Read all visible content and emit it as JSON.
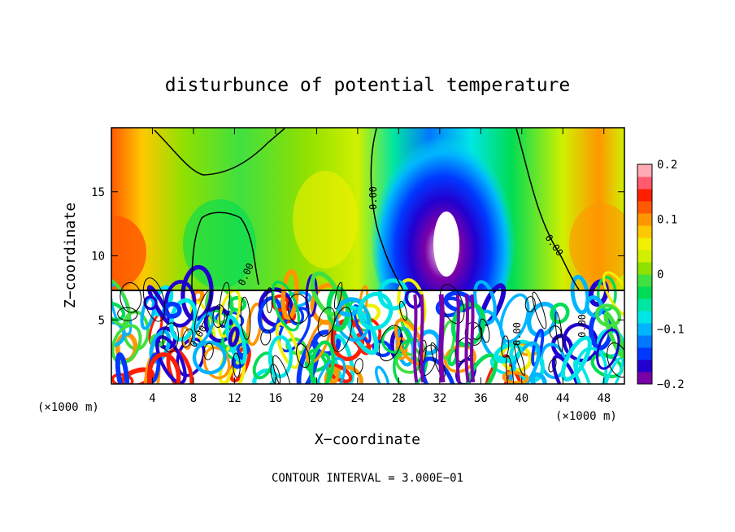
{
  "chart_data": {
    "type": "heatmap",
    "title": "disturbunce of potential temperature",
    "xlabel": "X−coordinate",
    "ylabel": "Z−coordinate",
    "x_unit_left": "(×1000 m)",
    "x_unit_right": "(×1000 m)",
    "footer": "CONTOUR INTERVAL = 3.000E−01",
    "xlim": [
      0,
      50
    ],
    "ylim": [
      0,
      20
    ],
    "x_ticks": [
      4,
      8,
      12,
      16,
      20,
      24,
      28,
      32,
      36,
      40,
      44,
      48
    ],
    "x_tick_labels": [
      "4",
      "8",
      "12",
      "16",
      "20",
      "24",
      "28",
      "32",
      "36",
      "40",
      "44",
      "48"
    ],
    "y_ticks": [
      5,
      10,
      15
    ],
    "y_tick_labels": [
      "5",
      "10",
      "15"
    ],
    "contour_labels": [
      "0.00",
      "0.00",
      "0.00",
      "0.00",
      "0.00",
      "0.00"
    ],
    "colorbar": {
      "min": -0.2,
      "max": 0.2,
      "ticks": [
        0.2,
        0.1,
        0,
        -0.1,
        -0.2
      ],
      "tick_labels": [
        "0.2",
        "0.1",
        "0",
        "−0.1",
        "−0.2"
      ],
      "colors": [
        "#7a00a8",
        "#2200d0",
        "#0038ff",
        "#0078ff",
        "#00b4ff",
        "#00e6e6",
        "#00e6a0",
        "#00dc55",
        "#40e040",
        "#90e000",
        "#d0f000",
        "#f0f000",
        "#ffc800",
        "#ff9600",
        "#ff5a00",
        "#ff1e00",
        "#ff5a6e",
        "#ffaab4"
      ]
    }
  }
}
